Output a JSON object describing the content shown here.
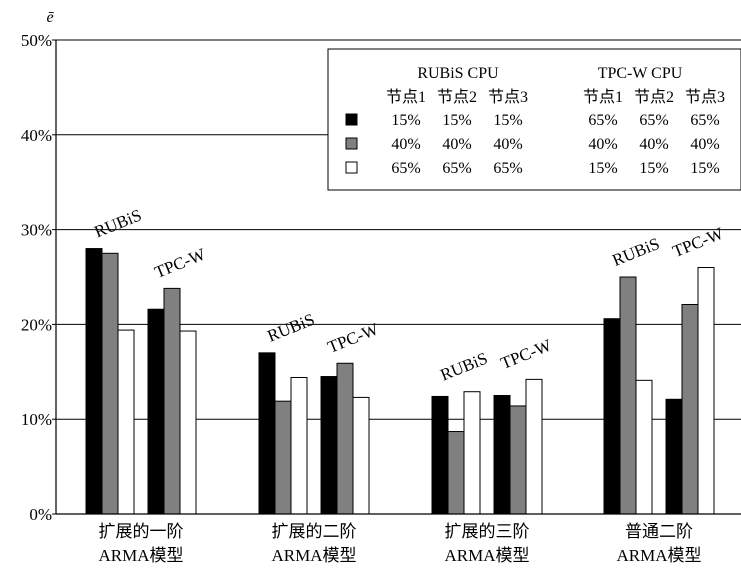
{
  "chart_data": {
    "type": "bar",
    "ylabel": "ē",
    "ylim": [
      0,
      50
    ],
    "yticks": [
      "0%",
      "10%",
      "20%",
      "30%",
      "40%",
      "50%"
    ],
    "grid": true,
    "legend_position": "top-right",
    "categories": [
      {
        "line1": "扩展的一阶",
        "line2": "ARMA模型"
      },
      {
        "line1": "扩展的二阶",
        "line2": "ARMA模型"
      },
      {
        "line1": "扩展的三阶",
        "line2": "ARMA模型"
      },
      {
        "line1": "普通二阶",
        "line2": "ARMA模型"
      }
    ],
    "cluster_labels": [
      "RUBiS",
      "TPC-W"
    ],
    "series": [
      {
        "name": "RUBiS-1",
        "cluster": 0,
        "fill": "#000000",
        "values": [
          28.0,
          17.0,
          12.4,
          20.6
        ]
      },
      {
        "name": "RUBiS-2",
        "cluster": 0,
        "fill": "#808080",
        "values": [
          27.5,
          11.9,
          8.7,
          25.0
        ]
      },
      {
        "name": "RUBiS-3",
        "cluster": 0,
        "fill": "#ffffff",
        "values": [
          19.4,
          14.4,
          12.9,
          14.1
        ]
      },
      {
        "name": "TPC-W-1",
        "cluster": 1,
        "fill": "#000000",
        "values": [
          21.6,
          14.5,
          12.5,
          12.1
        ]
      },
      {
        "name": "TPC-W-2",
        "cluster": 1,
        "fill": "#808080",
        "values": [
          23.8,
          15.9,
          11.4,
          22.1
        ]
      },
      {
        "name": "TPC-W-3",
        "cluster": 1,
        "fill": "#ffffff",
        "values": [
          19.3,
          12.3,
          14.2,
          26.0
        ]
      }
    ],
    "legend": {
      "headers": [
        "RUBiS  CPU",
        "TPC-W CPU"
      ],
      "node_labels": [
        "节点1",
        "节点2",
        "节点3",
        "节点1",
        "节点2",
        "节点3"
      ],
      "rows": [
        {
          "fill": "#000000",
          "values": [
            "15%",
            "15%",
            "15%",
            "65%",
            "65%",
            "65%"
          ]
        },
        {
          "fill": "#808080",
          "values": [
            "40%",
            "40%",
            "40%",
            "40%",
            "40%",
            "40%"
          ]
        },
        {
          "fill": "#ffffff",
          "values": [
            "65%",
            "65%",
            "65%",
            "15%",
            "15%",
            "15%"
          ]
        }
      ]
    }
  }
}
